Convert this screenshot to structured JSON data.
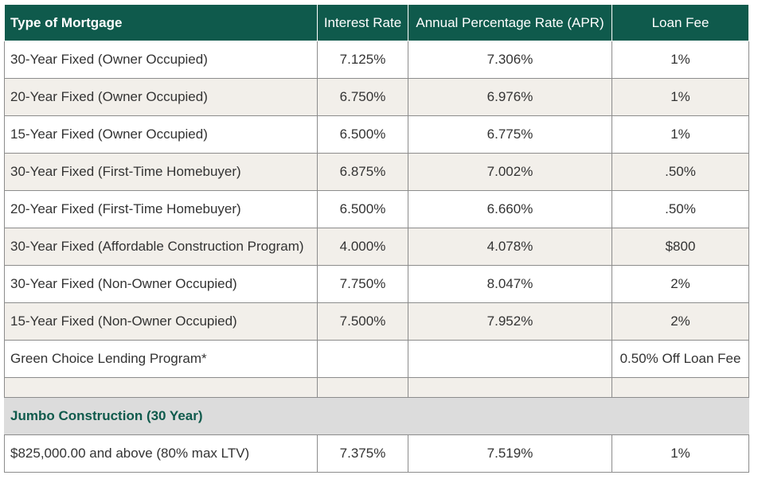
{
  "table": {
    "headers": [
      "Type of Mortgage",
      "Interest Rate",
      "Annual Percentage Rate (APR)",
      "Loan Fee"
    ],
    "rows": [
      {
        "type": "30-Year Fixed (Owner Occupied)",
        "rate": "7.125%",
        "apr": "7.306%",
        "fee": "1%"
      },
      {
        "type": "20-Year Fixed (Owner Occupied)",
        "rate": "6.750%",
        "apr": "6.976%",
        "fee": "1%"
      },
      {
        "type": "15-Year Fixed (Owner Occupied)",
        "rate": "6.500%",
        "apr": "6.775%",
        "fee": "1%"
      },
      {
        "type": "30-Year Fixed (First-Time Homebuyer)",
        "rate": "6.875%",
        "apr": "7.002%",
        "fee": ".50%"
      },
      {
        "type": "20-Year Fixed (First-Time Homebuyer)",
        "rate": "6.500%",
        "apr": "6.660%",
        "fee": ".50%"
      },
      {
        "type": "30-Year Fixed (Affordable Construction Program)",
        "rate": "4.000%",
        "apr": "4.078%",
        "fee": "$800"
      },
      {
        "type": "30-Year Fixed (Non-Owner Occupied)",
        "rate": "7.750%",
        "apr": "8.047%",
        "fee": "2%"
      },
      {
        "type": "15-Year Fixed (Non-Owner Occupied)",
        "rate": "7.500%",
        "apr": "7.952%",
        "fee": "2%"
      },
      {
        "type": "Green Choice Lending Program*",
        "rate": "",
        "apr": "",
        "fee": "0.50% Off Loan Fee"
      }
    ],
    "section_title": "Jumbo Construction (30 Year)",
    "jumbo_row": {
      "type": "$825,000.00 and above (80% max LTV)",
      "rate": "7.375%",
      "apr": "7.519%",
      "fee": "1%"
    }
  },
  "colors": {
    "header_bg": "#0f5a4c",
    "alt_row_bg": "#f2efea",
    "section_bg": "#dcdcdc"
  }
}
